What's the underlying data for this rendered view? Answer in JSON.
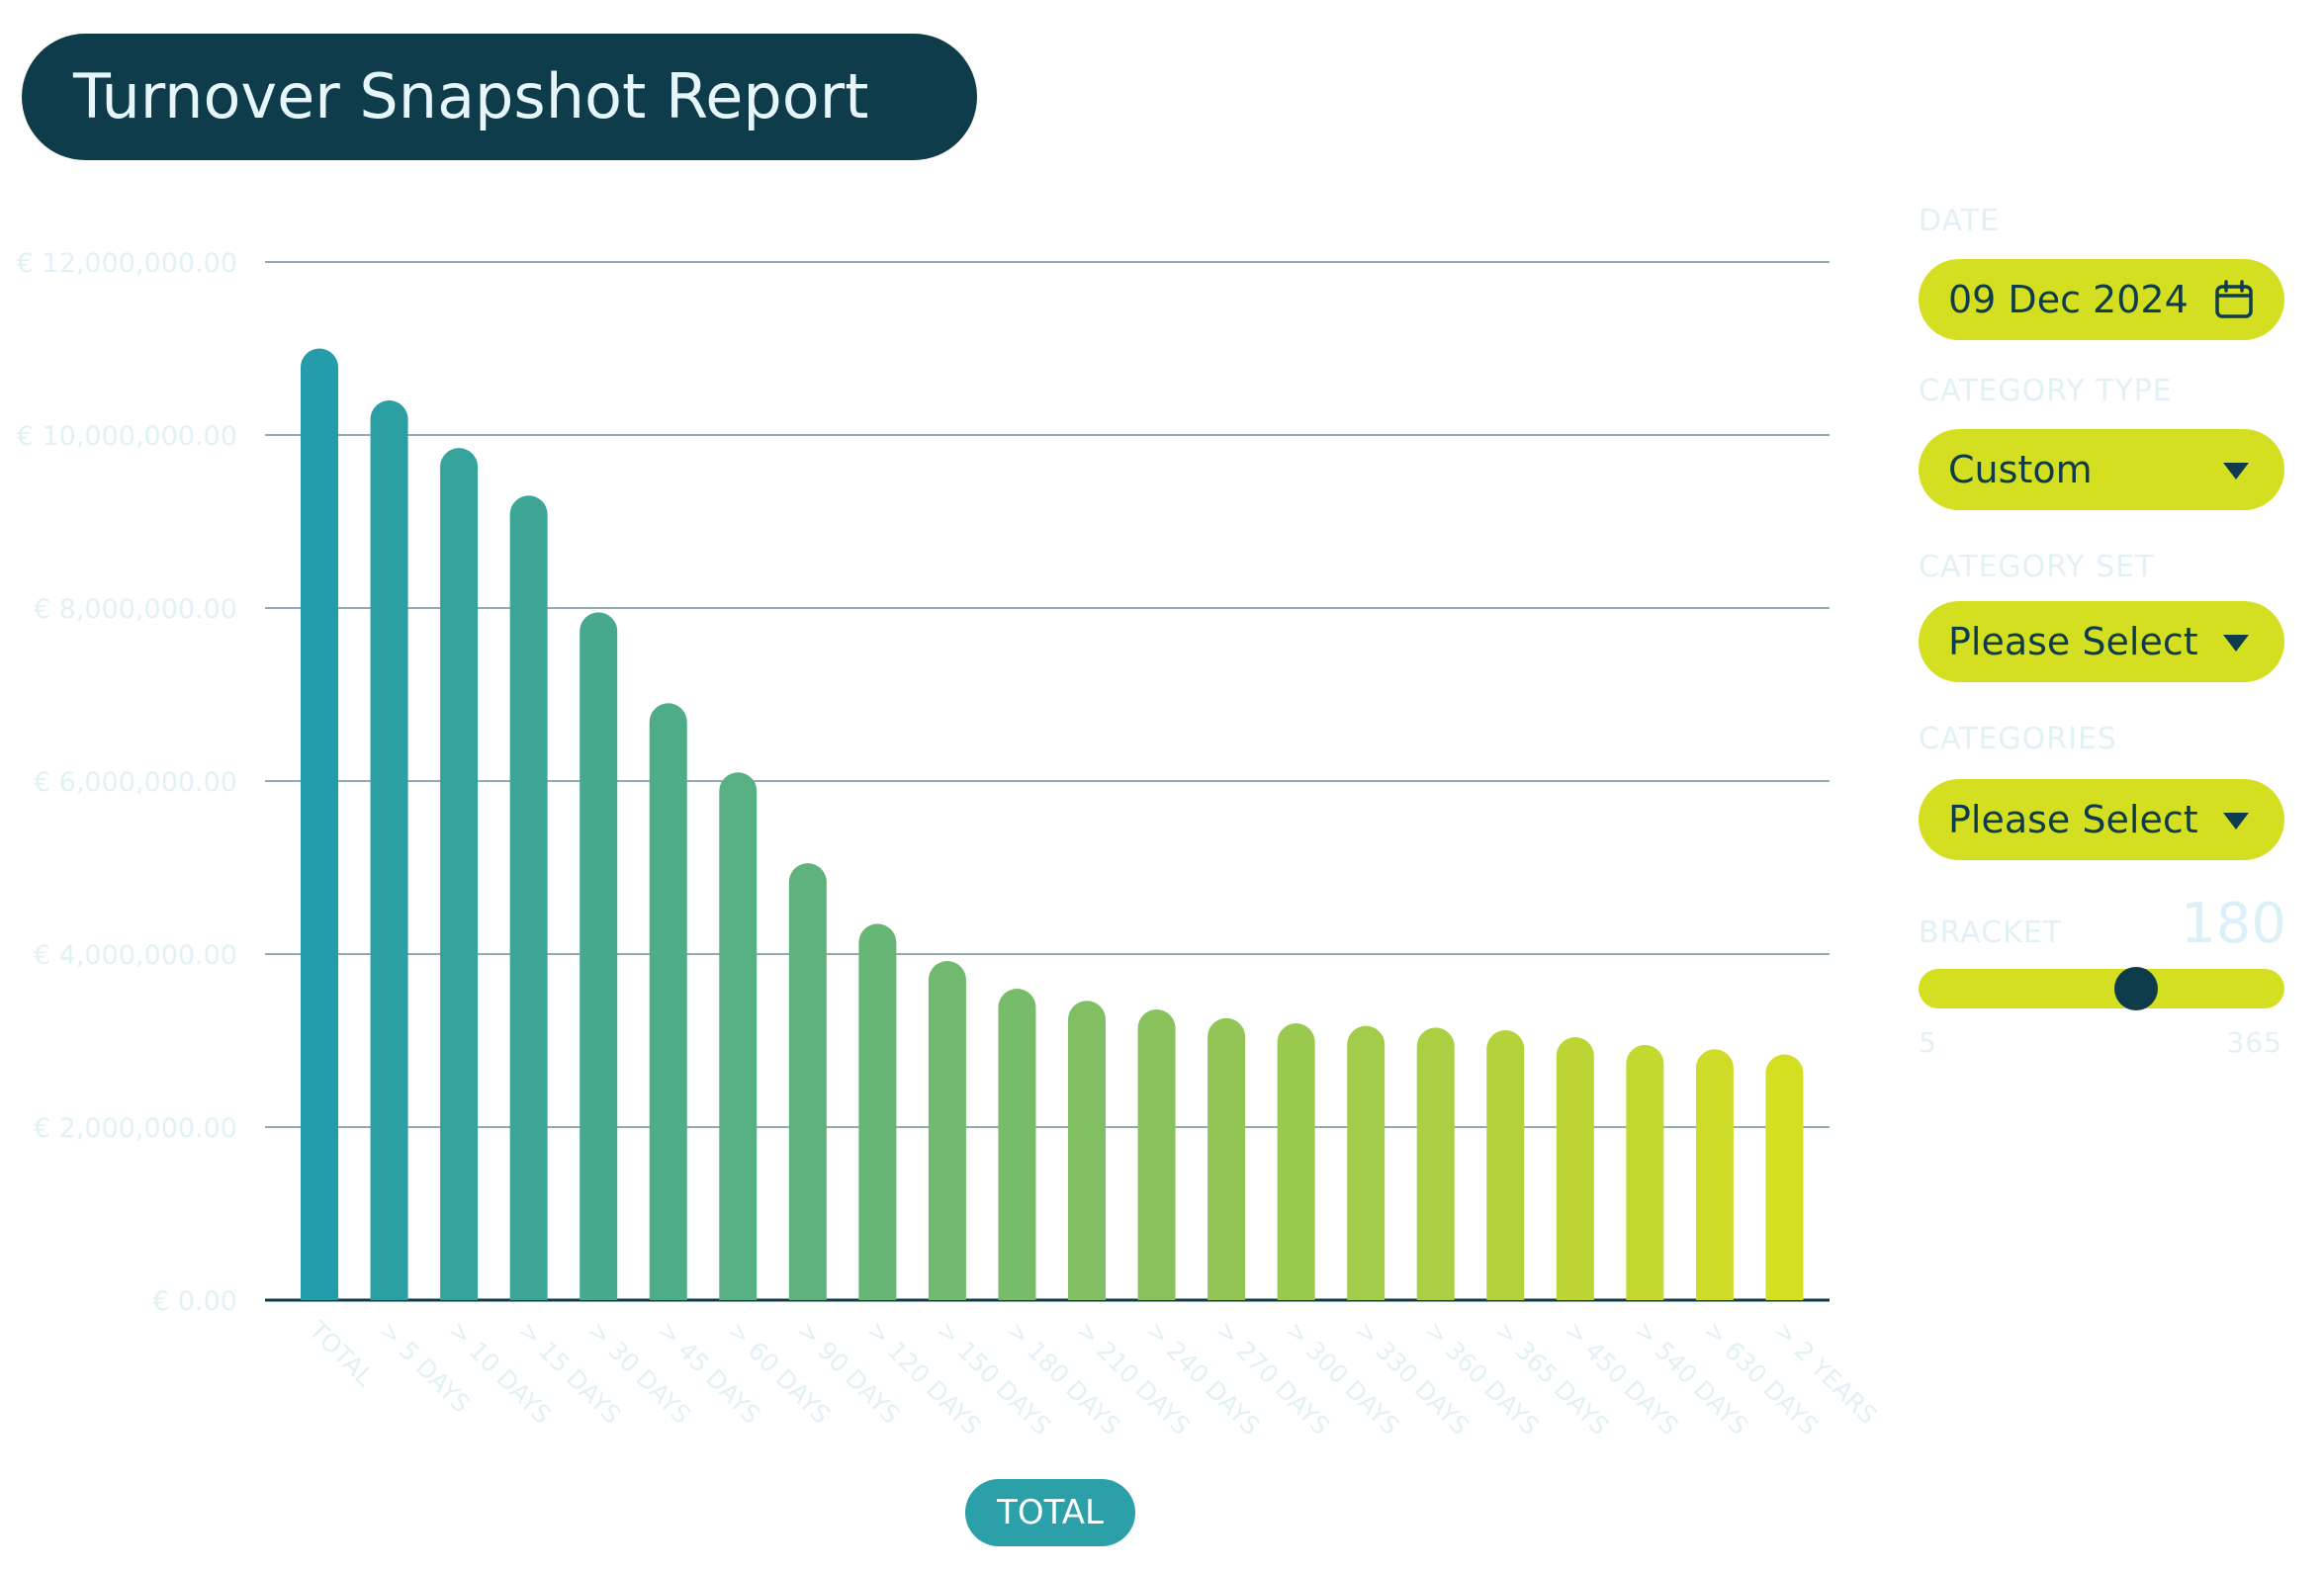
{
  "header": {
    "title": "Turnover Snapshot Report"
  },
  "controls": {
    "date": {
      "label": "DATE",
      "value": "09 Dec 2024"
    },
    "category_type": {
      "label": "CATEGORY TYPE",
      "value": "Custom"
    },
    "category_set": {
      "label": "CATEGORY SET",
      "value": "Please Select"
    },
    "categories": {
      "label": "CATEGORIES",
      "value": "Please Select"
    },
    "bracket": {
      "label": "BRACKET",
      "value": "180",
      "min": "5",
      "max": "365",
      "level": 180
    }
  },
  "footer": {
    "button_label": "TOTAL"
  },
  "colors": {
    "header_bg": "#0f3c4b",
    "accent": "#d5df22",
    "bar_start": "#249ca9",
    "bar_end": "#d5df22",
    "label_muted": "#e2f1f6"
  },
  "chart_data": {
    "type": "bar",
    "categories": [
      "TOTAL",
      "> 5 DAYS",
      "> 10 DAYS",
      "> 15 DAYS",
      "> 30 DAYS",
      "> 45 DAYS",
      "> 60 DAYS",
      "> 90 DAYS",
      "> 120 DAYS",
      "> 150 DAYS",
      "> 180 DAYS",
      "> 210 DAYS",
      "> 240 DAYS",
      "> 270 DAYS",
      "> 300 DAYS",
      "> 330 DAYS",
      "> 360 DAYS",
      "> 365 DAYS",
      "> 450 DAYS",
      "> 540 DAYS",
      "> 630 DAYS",
      "> 2 YEARS"
    ],
    "values": [
      11000000,
      10400000,
      9850000,
      9300000,
      7950000,
      6900000,
      6100000,
      5050000,
      4350000,
      3920000,
      3600000,
      3460000,
      3360000,
      3260000,
      3200000,
      3170000,
      3150000,
      3120000,
      3040000,
      2950000,
      2900000,
      2840000
    ],
    "ylim": [
      0,
      12000000
    ],
    "yticks": [
      0,
      2000000,
      4000000,
      6000000,
      8000000,
      10000000,
      12000000
    ],
    "ytick_labels": [
      "€ 0.00",
      "€ 2,000,000.00",
      "€ 4,000,000.00",
      "€ 6,000,000.00",
      "€ 8,000,000.00",
      "€ 10,000,000.00",
      "€ 12,000,000.00"
    ],
    "grid": true,
    "title": "",
    "xlabel": "",
    "ylabel": ""
  }
}
